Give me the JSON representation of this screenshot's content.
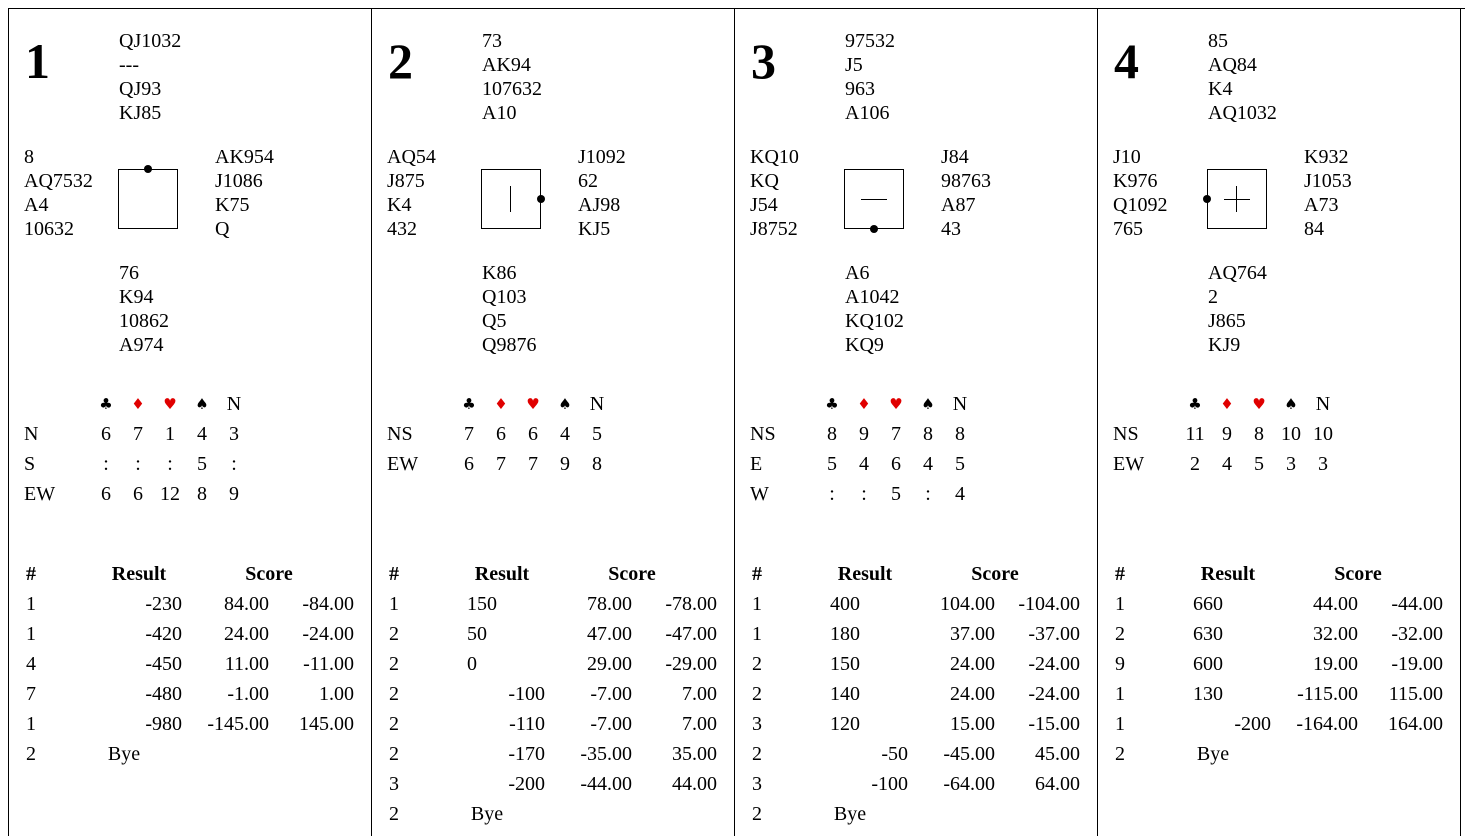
{
  "suits": [
    "♣",
    "♦",
    "♥",
    "♠"
  ],
  "headers": {
    "num": "#",
    "result": "Result",
    "score": "Score"
  },
  "boards": [
    {
      "number": "1",
      "dealer": "N",
      "vul": "none",
      "north": [
        "QJ1032",
        "---",
        "QJ93",
        "KJ85"
      ],
      "west": [
        "8",
        "AQ7532",
        "A4",
        "10632"
      ],
      "east": [
        "AK954",
        "J1086",
        "K75",
        "Q"
      ],
      "south": [
        "76",
        "K94",
        "10862",
        "A974"
      ],
      "trick_header_nt": "N",
      "tricks": [
        {
          "label": "N",
          "values": [
            "6",
            "7",
            "1",
            "4",
            "3"
          ]
        },
        {
          "label": "S",
          "values": [
            ":",
            ":",
            ":",
            "5",
            ":"
          ]
        },
        {
          "label": "EW",
          "values": [
            "6",
            "6",
            "12",
            "8",
            "9"
          ]
        }
      ],
      "results": [
        {
          "num": "1",
          "result": "-230",
          "s1": "84.00",
          "s2": "-84.00"
        },
        {
          "num": "1",
          "result": "-420",
          "s1": "24.00",
          "s2": "-24.00"
        },
        {
          "num": "4",
          "result": "-450",
          "s1": "11.00",
          "s2": "-11.00"
        },
        {
          "num": "7",
          "result": "-480",
          "s1": "-1.00",
          "s2": "1.00"
        },
        {
          "num": "1",
          "result": "-980",
          "s1": "-145.00",
          "s2": "145.00"
        },
        {
          "num": "2",
          "result": "Bye",
          "s1": "",
          "s2": ""
        }
      ]
    },
    {
      "number": "2",
      "dealer": "E",
      "vul": "ns",
      "north": [
        "73",
        "AK94",
        "107632",
        "A10"
      ],
      "west": [
        "AQ54",
        "J875",
        "K4",
        "432"
      ],
      "east": [
        "J1092",
        "62",
        "AJ98",
        "KJ5"
      ],
      "south": [
        "K86",
        "Q103",
        "Q5",
        "Q9876"
      ],
      "trick_header_nt": "N",
      "tricks": [
        {
          "label": "NS",
          "values": [
            "7",
            "6",
            "6",
            "4",
            "5"
          ]
        },
        {
          "label": "EW",
          "values": [
            "6",
            "7",
            "7",
            "9",
            "8"
          ]
        }
      ],
      "results": [
        {
          "num": "1",
          "result": "150",
          "s1": "78.00",
          "s2": "-78.00"
        },
        {
          "num": "2",
          "result": "50",
          "s1": "47.00",
          "s2": "-47.00"
        },
        {
          "num": "2",
          "result": "0",
          "s1": "29.00",
          "s2": "-29.00"
        },
        {
          "num": "2",
          "result": "-100",
          "s1": "-7.00",
          "s2": "7.00"
        },
        {
          "num": "2",
          "result": "-110",
          "s1": "-7.00",
          "s2": "7.00"
        },
        {
          "num": "2",
          "result": "-170",
          "s1": "-35.00",
          "s2": "35.00"
        },
        {
          "num": "3",
          "result": "-200",
          "s1": "-44.00",
          "s2": "44.00"
        },
        {
          "num": "2",
          "result": "Bye",
          "s1": "",
          "s2": ""
        }
      ]
    },
    {
      "number": "3",
      "dealer": "S",
      "vul": "ew",
      "north": [
        "97532",
        "J5",
        "963",
        "A106"
      ],
      "west": [
        "KQ10",
        "KQ",
        "J54",
        "J8752"
      ],
      "east": [
        "J84",
        "98763",
        "A87",
        "43"
      ],
      "south": [
        "A6",
        "A1042",
        "KQ102",
        "KQ9"
      ],
      "trick_header_nt": "N",
      "tricks": [
        {
          "label": "NS",
          "values": [
            "8",
            "9",
            "7",
            "8",
            "8"
          ]
        },
        {
          "label": "E",
          "values": [
            "5",
            "4",
            "6",
            "4",
            "5"
          ]
        },
        {
          "label": "W",
          "values": [
            ":",
            ":",
            "5",
            ":",
            "4"
          ]
        }
      ],
      "results": [
        {
          "num": "1",
          "result": "400",
          "s1": "104.00",
          "s2": "-104.00"
        },
        {
          "num": "1",
          "result": "180",
          "s1": "37.00",
          "s2": "-37.00"
        },
        {
          "num": "2",
          "result": "150",
          "s1": "24.00",
          "s2": "-24.00"
        },
        {
          "num": "2",
          "result": "140",
          "s1": "24.00",
          "s2": "-24.00"
        },
        {
          "num": "3",
          "result": "120",
          "s1": "15.00",
          "s2": "-15.00"
        },
        {
          "num": "2",
          "result": "-50",
          "s1": "-45.00",
          "s2": "45.00"
        },
        {
          "num": "3",
          "result": "-100",
          "s1": "-64.00",
          "s2": "64.00"
        },
        {
          "num": "2",
          "result": "Bye",
          "s1": "",
          "s2": ""
        }
      ]
    },
    {
      "number": "4",
      "dealer": "W",
      "vul": "all",
      "north": [
        "85",
        "AQ84",
        "K4",
        "AQ1032"
      ],
      "west": [
        "J10",
        "K976",
        "Q1092",
        "765"
      ],
      "east": [
        "K932",
        "J1053",
        "A73",
        "84"
      ],
      "south": [
        "AQ764",
        "2",
        "J865",
        "KJ9"
      ],
      "trick_header_nt": "N",
      "tricks": [
        {
          "label": "NS",
          "values": [
            "11",
            "9",
            "8",
            "10",
            "10"
          ]
        },
        {
          "label": "EW",
          "values": [
            "2",
            "4",
            "5",
            "3",
            "3"
          ]
        }
      ],
      "results": [
        {
          "num": "1",
          "result": "660",
          "s1": "44.00",
          "s2": "-44.00"
        },
        {
          "num": "2",
          "result": "630",
          "s1": "32.00",
          "s2": "-32.00"
        },
        {
          "num": "9",
          "result": "600",
          "s1": "19.00",
          "s2": "-19.00"
        },
        {
          "num": "1",
          "result": "130",
          "s1": "-115.00",
          "s2": "115.00"
        },
        {
          "num": "1",
          "result": "-200",
          "s1": "-164.00",
          "s2": "164.00"
        },
        {
          "num": "2",
          "result": "Bye",
          "s1": "",
          "s2": ""
        }
      ]
    }
  ]
}
